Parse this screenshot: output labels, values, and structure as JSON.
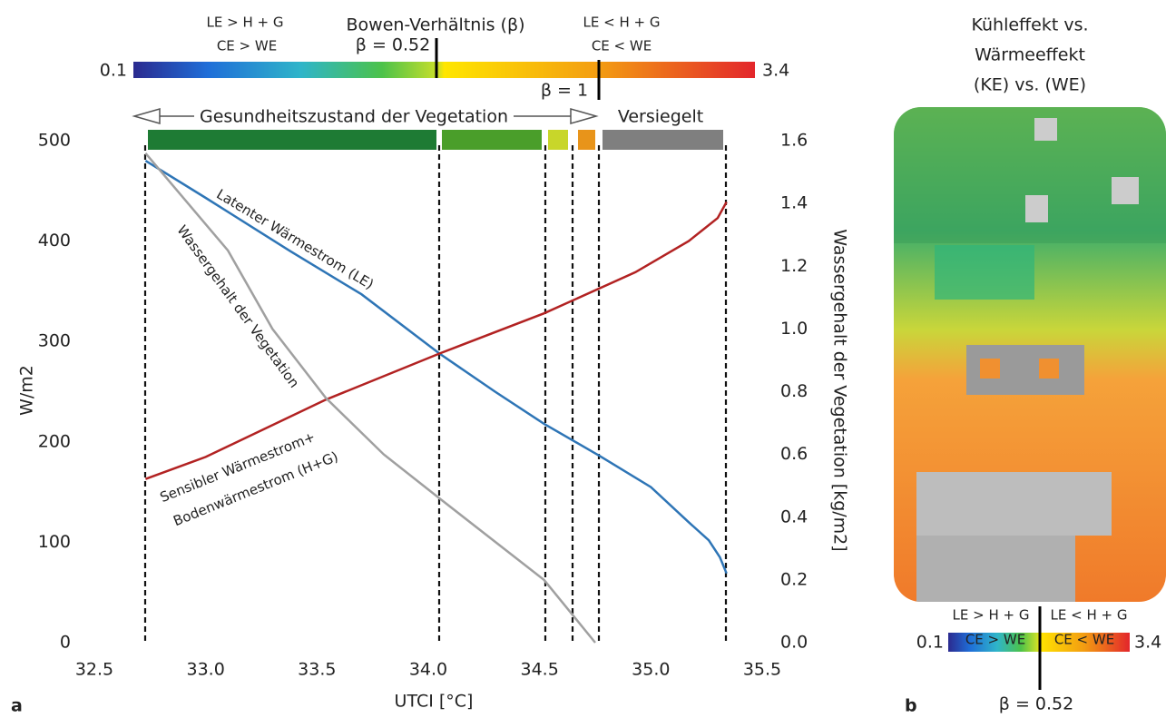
{
  "chart_data": {
    "type": "line",
    "panel_label": "a",
    "xlabel": "UTCI [°C]",
    "ylabel": "W/m2",
    "y2label": "Wassergehalt der Vegetation [kg/m2]",
    "xlim": [
      32.5,
      35.5
    ],
    "ylim": [
      0,
      500
    ],
    "y2lim": [
      0,
      1.6
    ],
    "xticks": [
      {
        "value": 32.5,
        "label": "32.5"
      },
      {
        "value": 33,
        "label": "33.0"
      },
      {
        "value": 33.5,
        "label": "33.5"
      },
      {
        "value": 34,
        "label": "34.0"
      },
      {
        "value": 34.5,
        "label": "34.5"
      },
      {
        "value": 35,
        "label": "35.0"
      },
      {
        "value": 35.5,
        "label": "35.5"
      }
    ],
    "yticks": [
      0,
      100,
      200,
      300,
      400,
      500
    ],
    "y2ticks": [
      {
        "value": 0,
        "label": "0.0"
      },
      0.2,
      0.4,
      0.6,
      0.8,
      {
        "value": 1,
        "label": "1.0"
      },
      1.2,
      1.4,
      1.6
    ],
    "series": [
      {
        "color": "#2e75b6",
        "x": [
          32.73,
          33.0,
          33.38,
          33.7,
          34.05,
          34.3,
          34.52,
          34.77,
          35.0,
          35.17,
          35.26,
          35.31,
          35.34
        ],
        "values": [
          480,
          443,
          390,
          347,
          288,
          250,
          218,
          186,
          155,
          120,
          102,
          85,
          69
        ]
      },
      {
        "color": "#b22222",
        "x": [
          32.73,
          33.0,
          33.54,
          34.05,
          34.52,
          34.93,
          35.17,
          35.3,
          35.34
        ],
        "values": [
          163,
          185,
          242,
          288,
          328,
          369,
          400,
          423,
          439
        ]
      },
      {
        "color": "#a0a0a0",
        "axis": "y2",
        "x": [
          32.73,
          33.1,
          33.3,
          33.54,
          33.8,
          34.05,
          34.52,
          34.75
        ],
        "values": [
          1.56,
          1.25,
          1.0,
          0.78,
          0.6,
          0.46,
          0.2,
          0
        ]
      }
    ],
    "annotations": [
      "Latenter Wärmestrom (LE)",
      "Wassergehalt der Vegetation",
      "Sensibler Wärmestrom+",
      "Bodenwärmestrom (H+G)"
    ],
    "vegetation_label": "Gesundheitszustand der Vegetation",
    "sealed_label": "Versiegelt",
    "bowen": {
      "title": "Bowen-Verhältnis (β)",
      "min": "0.1",
      "max": "3.4",
      "left_top": "LE > H + G",
      "left_bottom": "CE > WE",
      "right_top": "LE < H + G",
      "right_bottom": "CE < WE",
      "marker_low": "β = 0.52",
      "marker_high": "β = 1"
    }
  },
  "map_panel": {
    "panel_label": "b",
    "title": [
      "Kühleffekt vs.",
      "Wärmeeffekt",
      "(KE) vs. (WE)"
    ],
    "left_top": "LE > H + G",
    "left_bottom": "CE > WE",
    "right_top": "LE < H + G",
    "right_bottom": "CE < WE",
    "min": "0.1",
    "max": "3.4",
    "marker": "β = 0.52"
  }
}
